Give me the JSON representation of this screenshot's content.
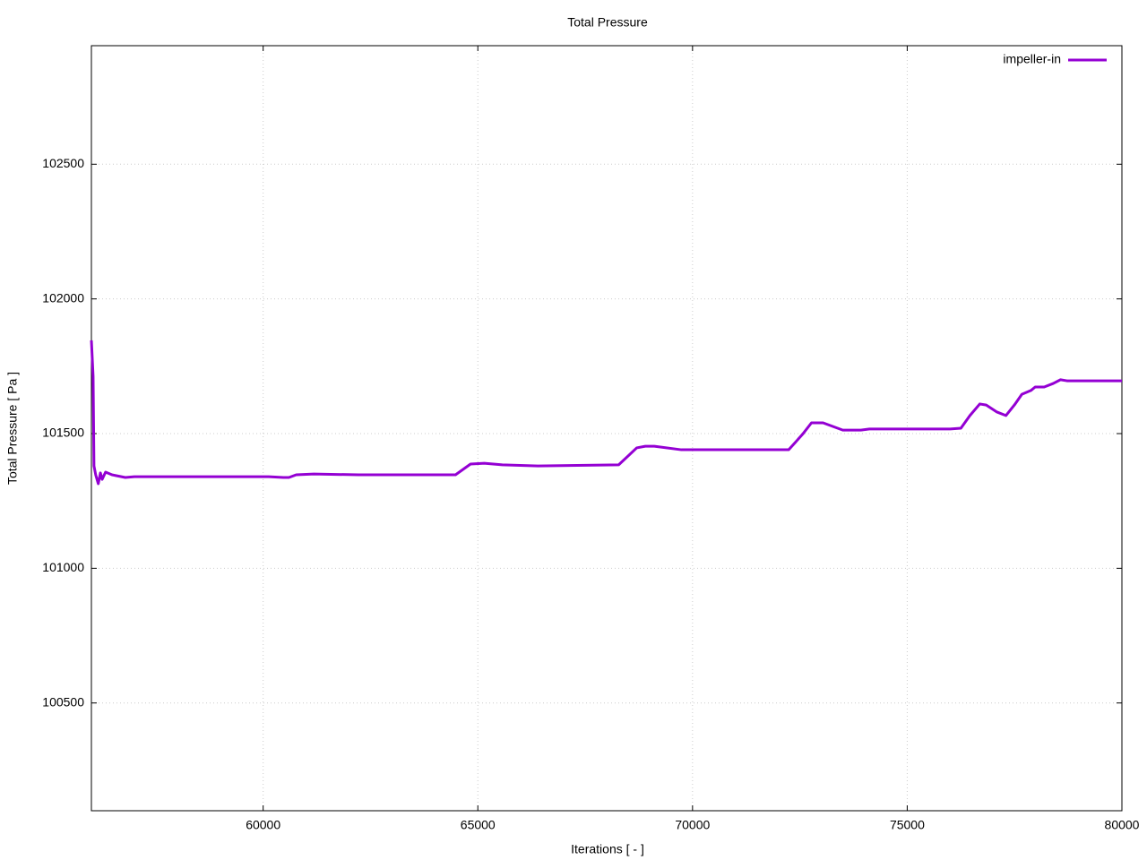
{
  "chart_data": {
    "type": "line",
    "title": "Total Pressure",
    "x_label": "Iterations [ - ]",
    "y_label": "Total Pressure [ Pa ]",
    "xlim": [
      56000,
      80000
    ],
    "xticks": [
      60000,
      65000,
      70000,
      75000,
      80000
    ],
    "ylim": [
      100100,
      102940
    ],
    "yticks": [
      100500,
      101000,
      101500,
      102000,
      102500
    ],
    "grid": true,
    "legend": "top-right",
    "x": [
      56000,
      56040,
      56060,
      56100,
      56160,
      56210,
      56250,
      56330,
      56480,
      56790,
      57000,
      60130,
      60470,
      60600,
      60770,
      61180,
      62220,
      64300,
      64480,
      64830,
      65150,
      65570,
      66400,
      68280,
      68700,
      68900,
      69110,
      69740,
      70150,
      72240,
      72560,
      72770,
      73040,
      73500,
      73920,
      74120,
      76000,
      76250,
      76460,
      76690,
      76840,
      77090,
      77300,
      77500,
      77670,
      77880,
      77980,
      78190,
      78400,
      78570,
      78720,
      78930,
      80000
    ],
    "series": [
      {
        "name": "impeller-in",
        "color": "#9400d3",
        "values": [
          101846,
          101713,
          101380,
          101347,
          101314,
          101354,
          101330,
          101357,
          101347,
          101337,
          101340,
          101340,
          101337,
          101337,
          101347,
          101350,
          101347,
          101347,
          101347,
          101387,
          101390,
          101384,
          101380,
          101384,
          101447,
          101453,
          101453,
          101440,
          101440,
          101440,
          101497,
          101540,
          101540,
          101513,
          101513,
          101517,
          101517,
          101520,
          101567,
          101610,
          101606,
          101580,
          101567,
          101607,
          101646,
          101660,
          101673,
          101673,
          101686,
          101700,
          101696,
          101696,
          101696
        ]
      }
    ]
  }
}
